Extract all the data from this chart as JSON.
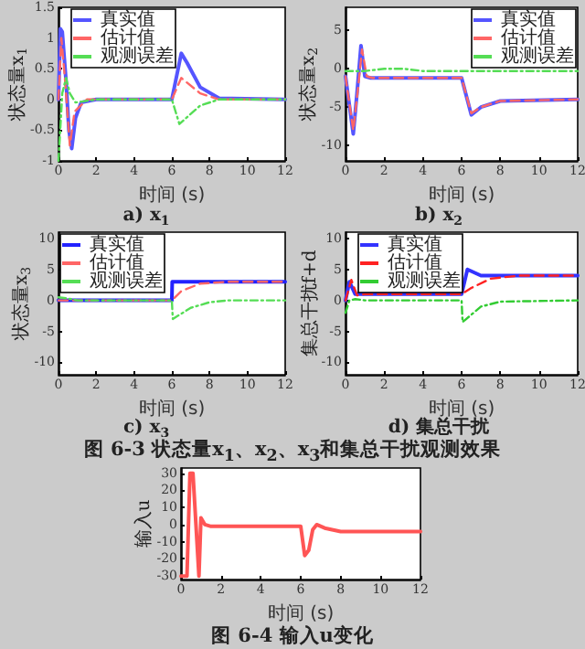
{
  "chart_data": [
    {
      "type": "line",
      "title": "a) x$_{1}$",
      "xlabel": "时间 (s)",
      "ylabel": "状态量x$_{1}$",
      "xlim": [
        0,
        12
      ],
      "xticks": [
        0,
        2,
        4,
        6,
        8,
        10,
        12
      ],
      "ylim": [
        -1,
        1.5
      ],
      "yticks": [
        -1,
        -0.5,
        0,
        0.5,
        1,
        1.5
      ],
      "grid": false,
      "legend": "top left",
      "series": [
        {
          "name": "真实值",
          "color": "#5555ff",
          "line_style": "solid",
          "x": [
            0,
            0.1,
            0.2,
            0.4,
            0.55,
            0.7,
            0.9,
            1.2,
            2,
            6,
            6.2,
            6.5,
            6.8,
            7.5,
            8.5,
            12
          ],
          "values": [
            0,
            1.15,
            1.1,
            0.3,
            -0.5,
            -0.8,
            -0.3,
            -0.05,
            0,
            0,
            0.3,
            0.75,
            0.6,
            0.2,
            0.02,
            0
          ]
        },
        {
          "name": "估计值",
          "color": "#ff6666",
          "line_style": "dashed",
          "x": [
            0,
            0.15,
            0.35,
            0.6,
            0.85,
            1.5,
            6,
            6.5,
            7.5,
            8.5,
            12
          ],
          "values": [
            0,
            1,
            0.3,
            -0.75,
            -0.2,
            0,
            0,
            0.35,
            0.1,
            0,
            0
          ]
        },
        {
          "name": "观测误差",
          "color": "#55dd55",
          "line_style": "dotted",
          "x": [
            0,
            0.2,
            0.4,
            0.6,
            0.9,
            2,
            6,
            6.4,
            7.5,
            8.5,
            12
          ],
          "values": [
            -1,
            0.1,
            0.35,
            0.1,
            -0.05,
            0,
            0,
            -0.4,
            -0.1,
            0,
            0
          ]
        }
      ]
    },
    {
      "type": "line",
      "title": "b) x$_{2}$",
      "xlabel": "时间 (s)",
      "ylabel": "状态量x$_{2}$",
      "xlim": [
        0,
        12
      ],
      "xticks": [
        0,
        2,
        4,
        6,
        8,
        10,
        12
      ],
      "ylim": [
        -12,
        8
      ],
      "yticks": [
        -10,
        -5,
        0,
        5
      ],
      "grid": false,
      "legend": "top right",
      "series": [
        {
          "name": "真实值",
          "color": "#5555ff",
          "line_style": "solid",
          "x": [
            0,
            0.4,
            0.6,
            0.8,
            1,
            1.3,
            6,
            6.5,
            7,
            8,
            12
          ],
          "values": [
            -1,
            -8.5,
            -3,
            3,
            -1,
            -1.2,
            -1.2,
            -6,
            -5,
            -4.2,
            -4
          ]
        },
        {
          "name": "估计值",
          "color": "#ff6666",
          "line_style": "dashed",
          "x": [
            0,
            0.4,
            0.65,
            0.85,
            1.1,
            1.4,
            6,
            6.5,
            7,
            8,
            12
          ],
          "values": [
            -1,
            -8,
            -2.5,
            2.5,
            -1,
            -1.2,
            -1.2,
            -5.8,
            -5,
            -4.2,
            -4
          ]
        },
        {
          "name": "观测误差",
          "color": "#55dd55",
          "line_style": "dotted",
          "x": [
            0,
            0.5,
            1,
            2,
            3,
            4,
            12
          ],
          "values": [
            -0.3,
            -0.3,
            -0.3,
            0,
            0,
            -0.3,
            -0.3
          ]
        }
      ]
    },
    {
      "type": "line",
      "title": "c) x$_{3}$",
      "xlabel": "时间 (s)",
      "ylabel": "状态量x$_{3}$",
      "xlim": [
        0,
        12
      ],
      "xticks": [
        0,
        2,
        4,
        6,
        8,
        10,
        12
      ],
      "ylim": [
        -12,
        11
      ],
      "yticks": [
        -10,
        -5,
        0,
        5,
        10
      ],
      "grid": false,
      "legend": "top left",
      "series": [
        {
          "name": "真实值",
          "color": "#2222ff",
          "line_style": "solid",
          "x": [
            0,
            6,
            6.02,
            12
          ],
          "values": [
            0,
            0,
            3,
            3
          ]
        },
        {
          "name": "估计值",
          "color": "#ff6666",
          "line_style": "dashed",
          "x": [
            0,
            6,
            6.5,
            7.5,
            9,
            12
          ],
          "values": [
            0,
            0,
            1.5,
            2.7,
            3,
            3
          ]
        },
        {
          "name": "观测误差",
          "color": "#55dd55",
          "line_style": "dotted",
          "x": [
            0,
            0.5,
            1,
            6,
            6.05,
            7,
            8,
            9,
            12
          ],
          "values": [
            0.5,
            0.3,
            0,
            0,
            -3,
            -1.2,
            -0.3,
            0,
            0
          ]
        }
      ]
    },
    {
      "type": "line",
      "title": "d) 集总干扰",
      "xlabel": "时间 (s)",
      "ylabel": "集总干扰f+d",
      "xlim": [
        0,
        12
      ],
      "xticks": [
        0,
        2,
        4,
        6,
        8,
        10,
        12
      ],
      "ylim": [
        -12,
        11
      ],
      "yticks": [
        -10,
        -5,
        0,
        5,
        10
      ],
      "grid": false,
      "legend": "top left",
      "annotations": [
        "图 6-3 状态量x$_{1}$、x$_{2}$、x$_{3}$和集总干扰观测效果"
      ],
      "series": [
        {
          "name": "真实值",
          "color": "#3333ff",
          "line_style": "solid",
          "x": [
            0,
            0.2,
            0.5,
            1,
            6,
            6.3,
            7,
            12
          ],
          "values": [
            0,
            3,
            1,
            1,
            1,
            5,
            4,
            4
          ]
        },
        {
          "name": "估计值",
          "color": "#ff2222",
          "line_style": "dashed",
          "x": [
            0,
            0.3,
            0.6,
            1,
            6,
            6.5,
            7.5,
            9,
            12
          ],
          "values": [
            0,
            3.3,
            0.8,
            1,
            1,
            2,
            3.5,
            4,
            4
          ]
        },
        {
          "name": "观测误差",
          "color": "#33cc33",
          "line_style": "dotted",
          "x": [
            0,
            0.2,
            0.5,
            1,
            6,
            6.05,
            7,
            8,
            12
          ],
          "values": [
            -2,
            0,
            0.2,
            0,
            0,
            -3.5,
            -1,
            -0.2,
            0
          ]
        }
      ]
    },
    {
      "type": "line",
      "xlabel": "时间 (s)",
      "ylabel": "输入u",
      "xlim": [
        0,
        12
      ],
      "xticks": [
        0,
        2,
        4,
        6,
        8,
        10,
        12
      ],
      "ylim": [
        -32,
        33
      ],
      "yticks": [
        -30,
        -20,
        -10,
        0,
        10,
        20,
        30
      ],
      "grid": false,
      "legend": false,
      "annotations": [
        "图 6-4 输入u变化"
      ],
      "series": [
        {
          "color": "#ff5555",
          "line_style": "solid",
          "x": [
            0,
            0.3,
            0.45,
            0.6,
            0.75,
            0.9,
            1,
            1.2,
            1.5,
            6,
            6.2,
            6.4,
            6.6,
            6.8,
            7.2,
            8,
            12
          ],
          "values": [
            -30,
            -30,
            30,
            30,
            0,
            -30,
            4,
            0,
            -1,
            -1,
            -18,
            -15,
            -3,
            0,
            -2,
            -4,
            -4
          ]
        }
      ]
    }
  ]
}
